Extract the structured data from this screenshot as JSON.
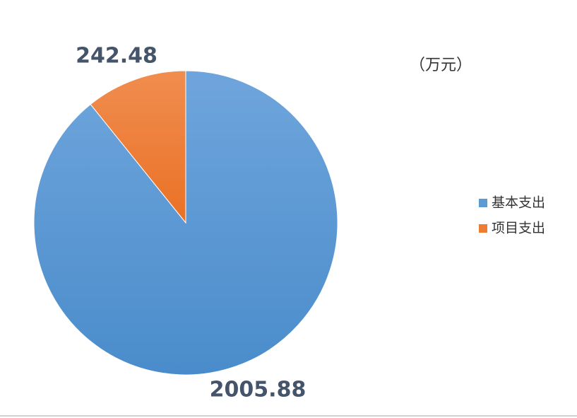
{
  "chart_data": {
    "type": "pie",
    "unit": "（万元）",
    "categories": [
      "基本支出",
      "项目支出"
    ],
    "values": [
      2005.88,
      242.48
    ],
    "colors": [
      "#5b9bd5",
      "#ed7d31"
    ],
    "legend": "right"
  }
}
